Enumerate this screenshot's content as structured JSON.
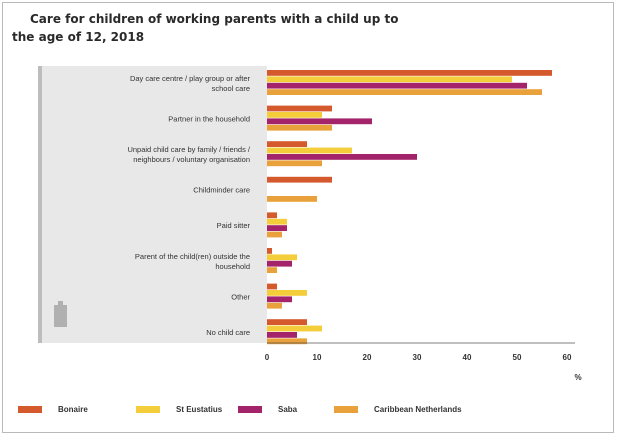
{
  "title_line1": "Care for children of working parents with a child up to",
  "title_line2": "the age of 12, 2018",
  "chart_data": {
    "type": "bar",
    "orientation": "horizontal",
    "title": "Care for children of working parents with a child up to the age of 12, 2018",
    "xlabel": "%",
    "ylabel": "",
    "xlim": [
      0,
      60
    ],
    "x_ticks": [
      0,
      10,
      20,
      30,
      40,
      50,
      60
    ],
    "grid": false,
    "legend_position": "bottom",
    "categories": [
      [
        "Day care centre / play group or after",
        "school care"
      ],
      [
        "Partner in the household"
      ],
      [
        "Unpaid child care by family / friends /",
        "neighbours / voluntary organisation"
      ],
      [
        "Childminder care"
      ],
      [
        "Paid sitter"
      ],
      [
        "Parent of the child(ren) outside the",
        "household"
      ],
      [
        "Other"
      ],
      [
        "No child care"
      ]
    ],
    "series": [
      {
        "name": "Bonaire",
        "color": "#d45a2e",
        "values": [
          57,
          13,
          8,
          13,
          2,
          1,
          2,
          8
        ]
      },
      {
        "name": "St Eustatius",
        "color": "#f4cd3a",
        "values": [
          49,
          11,
          17,
          0,
          4,
          6,
          8,
          11
        ]
      },
      {
        "name": "Saba",
        "color": "#a3246a",
        "values": [
          52,
          21,
          30,
          0,
          4,
          5,
          5,
          6
        ]
      },
      {
        "name": "Caribbean Netherlands",
        "color": "#e9a13b",
        "values": [
          55,
          13,
          11,
          10,
          3,
          2,
          3,
          8
        ]
      }
    ]
  }
}
